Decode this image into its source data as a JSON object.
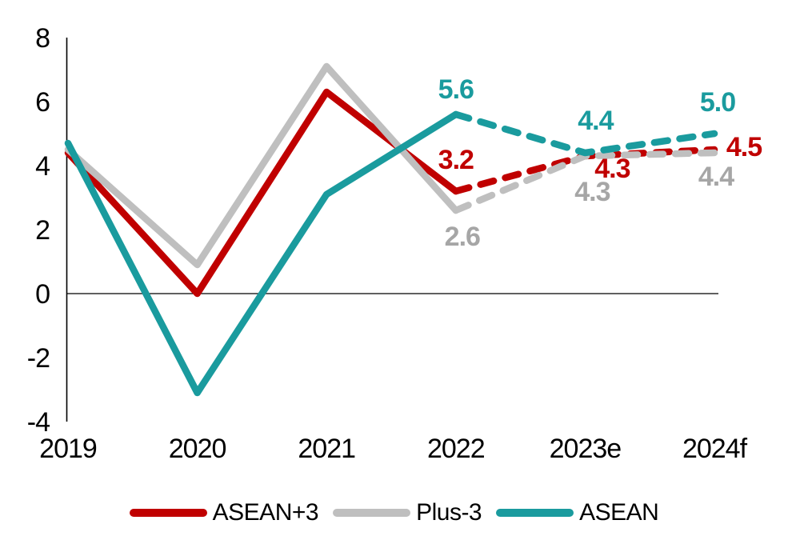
{
  "chart_data": {
    "type": "line",
    "title": "",
    "categories": [
      "2019",
      "2020",
      "2021",
      "2022",
      "2023e",
      "2024f"
    ],
    "y_ticks": [
      "8",
      "6",
      "4",
      "2",
      "0",
      "-2",
      "-4"
    ],
    "ylim": [
      -4,
      8
    ],
    "xlabel": "",
    "ylabel": "",
    "grid": "zero-baseline-only",
    "legend_position": "bottom",
    "dashed_forecast_from_category": "2022",
    "series": [
      {
        "name": "ASEAN+3",
        "color": "#c00000",
        "label_color": "#c00000",
        "values": [
          4.4,
          0.0,
          6.3,
          3.2,
          4.3,
          4.5
        ],
        "point_labels": [
          null,
          null,
          null,
          "3.2",
          "4.3",
          "4.5"
        ]
      },
      {
        "name": "Plus-3",
        "color": "#bfbfbf",
        "label_color": "#a6a6a6",
        "values": [
          4.5,
          0.9,
          7.1,
          2.6,
          4.3,
          4.4
        ],
        "point_labels": [
          null,
          null,
          null,
          "2.6",
          "4.3",
          "4.4"
        ]
      },
      {
        "name": "ASEAN",
        "color": "#1a9b9e",
        "label_color": "#1a9b9e",
        "values": [
          4.7,
          -3.1,
          3.1,
          5.6,
          4.4,
          5.0
        ],
        "point_labels": [
          null,
          null,
          null,
          "5.6",
          "4.4",
          "5.0"
        ]
      }
    ],
    "legend": [
      "ASEAN+3",
      "Plus-3",
      "ASEAN"
    ]
  }
}
